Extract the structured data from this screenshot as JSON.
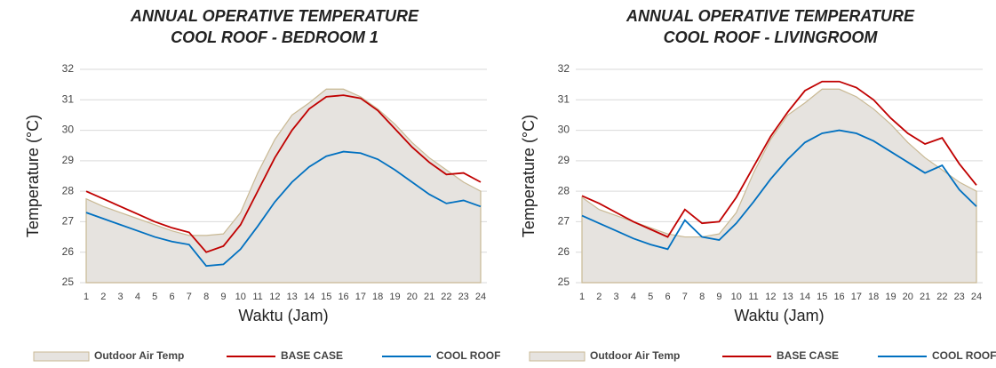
{
  "chart_data": [
    {
      "type": "line",
      "title": [
        "ANNUAL OPERATIVE TEMPERATURE",
        "COOL ROOF - BEDROOM 1"
      ],
      "xlabel": "Waktu (Jam)",
      "ylabel": "Temperature (°C)",
      "categories": [
        "1",
        "2",
        "3",
        "4",
        "5",
        "6",
        "7",
        "8",
        "9",
        "10",
        "11",
        "12",
        "13",
        "14",
        "15",
        "16",
        "17",
        "18",
        "19",
        "20",
        "21",
        "22",
        "23",
        "24"
      ],
      "ylim": [
        25,
        32
      ],
      "yticks": [
        25,
        26,
        27,
        28,
        29,
        30,
        31,
        32
      ],
      "grid": true,
      "series": [
        {
          "name": "Outdoor Air Temp",
          "kind": "area",
          "color": "#e6e3df",
          "edge": "#c9b994",
          "values": [
            27.75,
            27.5,
            27.3,
            27.1,
            26.9,
            26.7,
            26.55,
            26.55,
            26.6,
            27.3,
            28.6,
            29.7,
            30.5,
            30.9,
            31.35,
            31.35,
            31.1,
            30.7,
            30.2,
            29.6,
            29.1,
            28.7,
            28.3,
            28.0
          ]
        },
        {
          "name": "BASE CASE",
          "kind": "line",
          "color": "#c00000",
          "values": [
            28.0,
            27.75,
            27.5,
            27.25,
            27.0,
            26.8,
            26.65,
            26.0,
            26.2,
            26.9,
            28.0,
            29.1,
            30.0,
            30.7,
            31.1,
            31.15,
            31.05,
            30.65,
            30.05,
            29.45,
            28.95,
            28.55,
            28.6,
            28.3
          ]
        },
        {
          "name": "COOL ROOF",
          "kind": "line",
          "color": "#0070c0",
          "values": [
            27.3,
            27.1,
            26.9,
            26.7,
            26.5,
            26.35,
            26.25,
            25.55,
            25.6,
            26.1,
            26.85,
            27.65,
            28.3,
            28.8,
            29.15,
            29.3,
            29.25,
            29.05,
            28.7,
            28.3,
            27.9,
            27.6,
            27.7,
            27.5
          ]
        }
      ]
    },
    {
      "type": "line",
      "title": [
        "ANNUAL OPERATIVE TEMPERATURE",
        "COOL ROOF - LIVINGROOM"
      ],
      "xlabel": "Waktu (Jam)",
      "ylabel": "Temperature (°C)",
      "categories": [
        "1",
        "2",
        "3",
        "4",
        "5",
        "6",
        "7",
        "8",
        "9",
        "10",
        "11",
        "12",
        "13",
        "14",
        "15",
        "16",
        "17",
        "18",
        "19",
        "20",
        "21",
        "22",
        "23",
        "24"
      ],
      "ylim": [
        25,
        32
      ],
      "yticks": [
        25,
        26,
        27,
        28,
        29,
        30,
        31,
        32
      ],
      "grid": true,
      "series": [
        {
          "name": "Outdoor Air Temp",
          "kind": "area",
          "color": "#e6e3df",
          "edge": "#c9b994",
          "values": [
            27.8,
            27.4,
            27.2,
            27.0,
            26.8,
            26.6,
            26.5,
            26.5,
            26.6,
            27.3,
            28.6,
            29.7,
            30.5,
            30.9,
            31.35,
            31.35,
            31.1,
            30.7,
            30.2,
            29.6,
            29.1,
            28.7,
            28.3,
            28.0
          ]
        },
        {
          "name": "BASE CASE",
          "kind": "line",
          "color": "#c00000",
          "values": [
            27.85,
            27.6,
            27.3,
            27.0,
            26.75,
            26.5,
            27.4,
            26.95,
            27.0,
            27.8,
            28.8,
            29.8,
            30.6,
            31.3,
            31.6,
            31.6,
            31.4,
            31.0,
            30.4,
            29.9,
            29.55,
            29.75,
            28.9,
            28.2
          ]
        },
        {
          "name": "COOL ROOF",
          "kind": "line",
          "color": "#0070c0",
          "values": [
            27.2,
            26.95,
            26.7,
            26.45,
            26.25,
            26.1,
            27.05,
            26.5,
            26.4,
            26.95,
            27.65,
            28.4,
            29.05,
            29.6,
            29.9,
            30.0,
            29.9,
            29.65,
            29.3,
            28.95,
            28.6,
            28.85,
            28.05,
            27.5
          ]
        }
      ]
    }
  ]
}
